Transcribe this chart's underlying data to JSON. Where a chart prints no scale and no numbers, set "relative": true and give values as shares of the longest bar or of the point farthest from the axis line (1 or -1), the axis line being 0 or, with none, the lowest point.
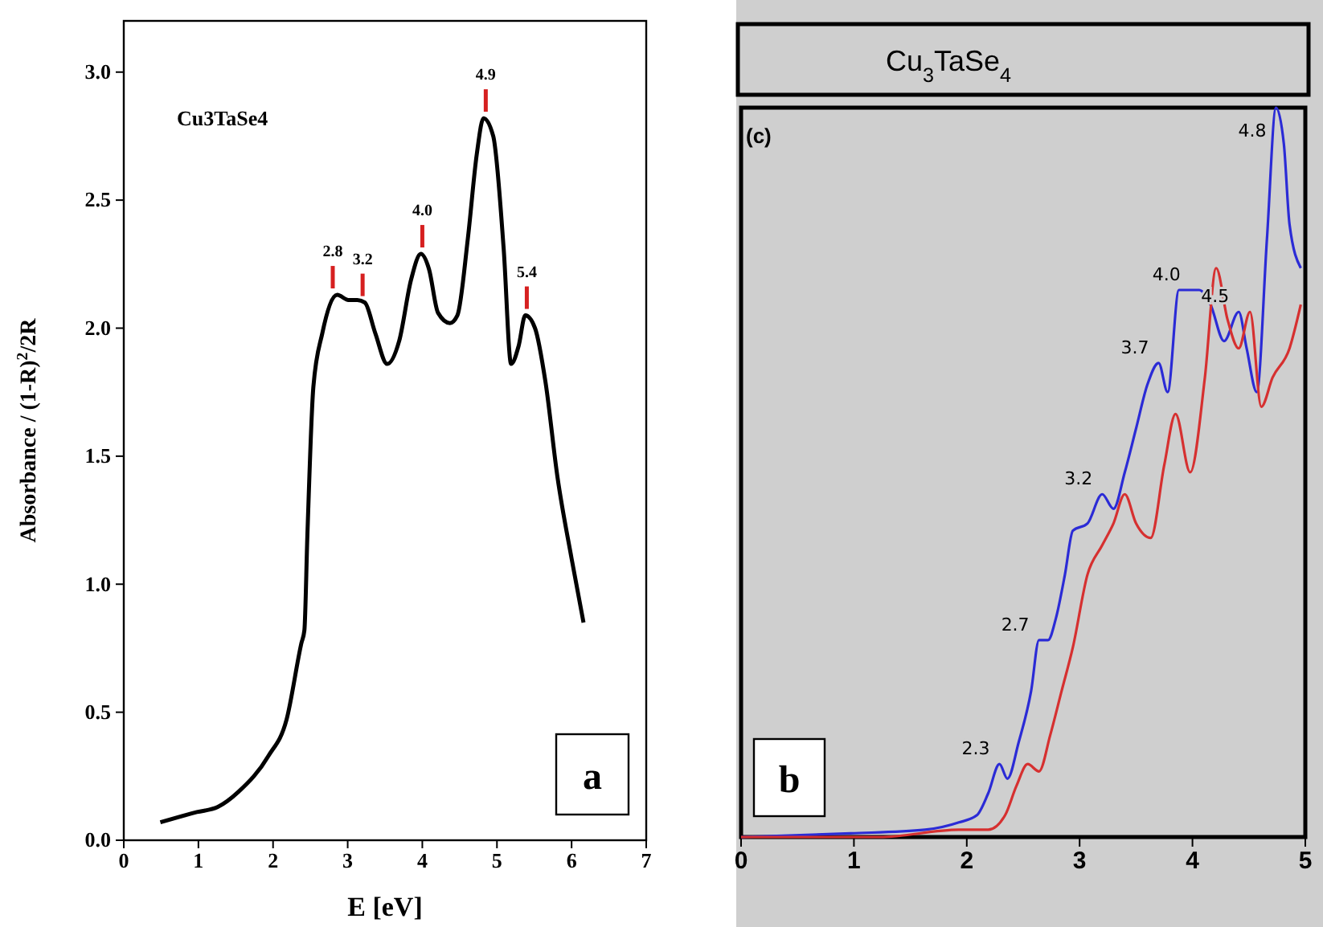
{
  "chart_data": [
    {
      "type": "line",
      "xlabel": "E [eV]",
      "ylabel": "Absorbance / (1-R)$^{2}$/2R",
      "xlim": [
        0,
        7
      ],
      "ylim": [
        0,
        3.2
      ],
      "xticks": [
        0,
        1,
        2,
        3,
        4,
        5,
        6,
        7
      ],
      "yticks": [
        {
          "value": 0,
          "label": "0.0"
        },
        0.5,
        {
          "value": 1,
          "label": "1.0"
        },
        1.5,
        {
          "value": 2,
          "label": "2.0"
        },
        2.5,
        {
          "value": 3,
          "label": "3.0"
        }
      ],
      "grid": false,
      "series": [
        {
          "color": "#000000",
          "x": [
            0.49,
            0.98,
            1.26,
            1.54,
            1.94,
            2.18,
            2.38,
            2.42,
            2.46,
            2.54,
            2.66,
            2.86,
            3.01,
            3.13,
            3.23,
            3.37,
            3.53,
            3.69,
            3.85,
            3.98,
            4.09,
            4.21,
            4.37,
            4.47,
            4.61,
            4.73,
            4.82,
            4.95,
            5.09,
            5.19,
            5.29,
            5.38,
            5.51,
            5.65,
            5.81,
            6.0,
            6.16
          ],
          "values": [
            0.07,
            0.11,
            0.13,
            0.19,
            0.33,
            0.47,
            0.77,
            0.82,
            1.19,
            1.77,
            1.98,
            2.13,
            2.11,
            2.11,
            2.1,
            1.98,
            1.86,
            1.95,
            2.19,
            2.29,
            2.23,
            2.06,
            2.02,
            2.05,
            2.35,
            2.68,
            2.82,
            2.75,
            2.31,
            1.86,
            1.93,
            2.05,
            2.0,
            1.79,
            1.42,
            1.1,
            0.85
          ]
        }
      ],
      "annotations": [
        "Cu3TaSe4",
        "a",
        {
          "text": "2.8",
          "x": 2.8,
          "y": 2.13
        },
        {
          "text": "3.2",
          "x": 3.2,
          "y": 2.1
        },
        {
          "text": "4.0",
          "x": 4.0,
          "y": 2.29
        },
        {
          "text": "4.9",
          "x": 4.85,
          "y": 2.82
        },
        {
          "text": "5.4",
          "x": 5.4,
          "y": 2.05
        }
      ]
    },
    {
      "type": "line",
      "title": "Cu$_{3}$TaSe$_{4}$",
      "relative": true,
      "xlim": [
        0,
        5
      ],
      "xticks": [
        0,
        1,
        2,
        3,
        4,
        5
      ],
      "tick_labels": "x",
      "grid": false,
      "series": [
        {
          "color": "#2b2bd6",
          "x": [
            0,
            0.97,
            1.63,
            1.93,
            2.09,
            2.19,
            2.29,
            2.36,
            2.46,
            2.57,
            2.64,
            2.72,
            2.79,
            2.87,
            2.94,
            3.07,
            3.2,
            3.3,
            3.4,
            3.5,
            3.6,
            3.7,
            3.78,
            3.88,
            3.98,
            4.06,
            4.16,
            4.28,
            4.41,
            4.48,
            4.57,
            4.66,
            4.74,
            4.81,
            4.86,
            4.96
          ],
          "values": [
            0,
            0.005,
            0.01,
            0.02,
            0.03,
            0.06,
            0.1,
            0.08,
            0.13,
            0.2,
            0.27,
            0.27,
            0.3,
            0.36,
            0.42,
            0.43,
            0.47,
            0.45,
            0.5,
            0.56,
            0.62,
            0.65,
            0.61,
            0.75,
            0.75,
            0.75,
            0.73,
            0.68,
            0.72,
            0.67,
            0.61,
            0.82,
            1,
            0.95,
            0.84,
            0.78
          ]
        },
        {
          "color": "#d63030",
          "x": [
            0,
            1.23,
            1.93,
            2.19,
            2.34,
            2.44,
            2.54,
            2.64,
            2.74,
            2.84,
            2.94,
            3.07,
            3.2,
            3.3,
            3.4,
            3.5,
            3.63,
            3.75,
            3.85,
            3.98,
            4.11,
            4.21,
            4.31,
            4.41,
            4.51,
            4.61,
            4.71,
            4.86,
            4.96
          ],
          "values": [
            0,
            0,
            0.01,
            0.01,
            0.03,
            0.07,
            0.1,
            0.09,
            0.14,
            0.2,
            0.26,
            0.36,
            0.4,
            0.43,
            0.47,
            0.43,
            0.41,
            0.51,
            0.58,
            0.5,
            0.63,
            0.78,
            0.71,
            0.67,
            0.72,
            0.59,
            0.63,
            0.67,
            0.73
          ]
        }
      ],
      "annotations": [
        "(c)",
        "b",
        {
          "text": "2.3",
          "x": 2.29,
          "y": 0.1
        },
        {
          "text": "2.7",
          "x": 2.64,
          "y": 0.27
        },
        {
          "text": "3.2",
          "x": 3.2,
          "y": 0.47
        },
        {
          "text": "3.7",
          "x": 3.7,
          "y": 0.65
        },
        {
          "text": "4.0",
          "x": 3.98,
          "y": 0.75
        },
        {
          "text": "4.5",
          "x": 4.41,
          "y": 0.72
        },
        {
          "text": "4.8",
          "x": 4.74,
          "y": 1
        }
      ]
    }
  ]
}
